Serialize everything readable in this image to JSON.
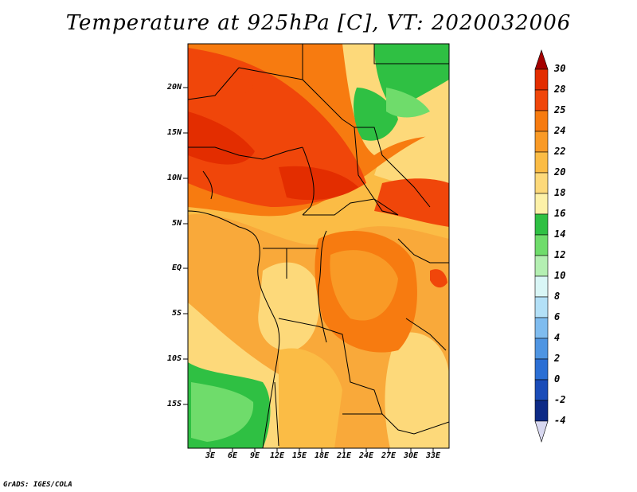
{
  "title": "Temperature at 925hPa [C], VT: 2020032006",
  "credit": "GrADS: IGES/COLA",
  "y_axis_labels": [
    "20N",
    "15N",
    "10N",
    "5N",
    "EQ",
    "5S",
    "10S",
    "15S"
  ],
  "x_axis_labels": [
    "3E",
    "6E",
    "9E",
    "12E",
    "15E",
    "18E",
    "21E",
    "24E",
    "27E",
    "30E",
    "33E"
  ],
  "colorbar": {
    "labels": [
      "30",
      "28",
      "25",
      "24",
      "22",
      "20",
      "18",
      "16",
      "14",
      "12",
      "10",
      "8",
      "6",
      "4",
      "2",
      "0",
      "-2",
      "-4"
    ],
    "colors": [
      "#a50000",
      "#e32d00",
      "#f0460a",
      "#f77b10",
      "#f99a26",
      "#fbbc45",
      "#fdd97a",
      "#fdf1a8",
      "#2fc043",
      "#6fdc6b",
      "#b4efb2",
      "#d9f6f6",
      "#b3e0f7",
      "#7fbcef",
      "#4f95e2",
      "#2b6fd4",
      "#1a4cb8",
      "#0d2a86",
      "#06155c",
      "#d8d8f0"
    ]
  },
  "map": {
    "lon_range": [
      0,
      35
    ],
    "lat_range": [
      -20,
      25
    ]
  }
}
